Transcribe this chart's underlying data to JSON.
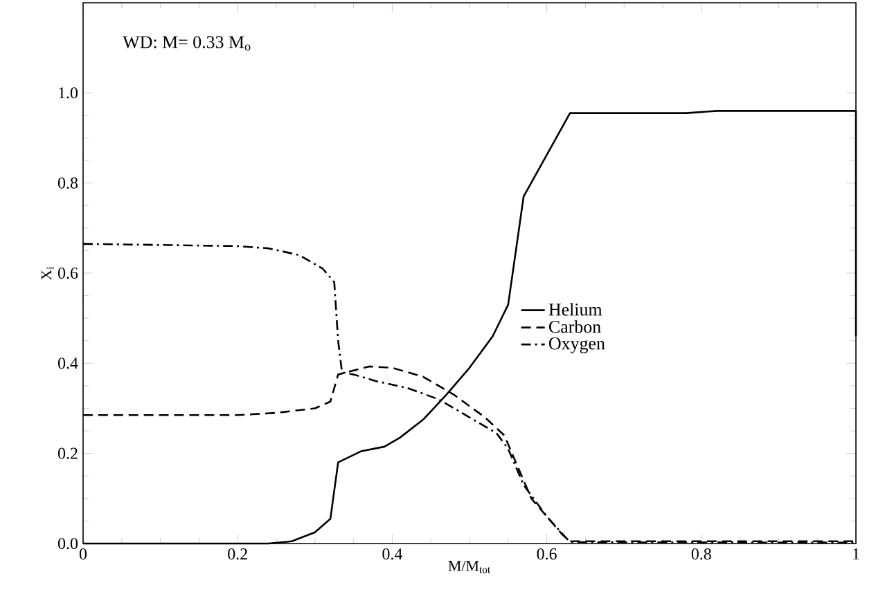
{
  "chart_data": {
    "type": "line",
    "xlabel": "M/M$_{tot}$",
    "ylabel": "X$_{i}$",
    "annotations": [
      "WD: M= 0.33 M$_{o}$"
    ],
    "xlim": [
      0,
      1
    ],
    "ylim": [
      0,
      1.2
    ],
    "xticks": [
      0,
      0.2,
      0.4,
      0.6,
      0.8,
      1
    ],
    "yticks": [
      {
        "value": 0,
        "label": "0.0"
      },
      0.2,
      0.4,
      0.6,
      0.8,
      {
        "value": 1,
        "label": "1.0"
      }
    ],
    "grid": false,
    "legend": "right",
    "marker": "none",
    "series": [
      {
        "name": "Helium",
        "color": "#000000",
        "line_style": "solid",
        "x": [
          0,
          0.24,
          0.27,
          0.3,
          0.32,
          0.33,
          0.36,
          0.39,
          0.41,
          0.44,
          0.47,
          0.5,
          0.53,
          0.55,
          0.57,
          0.63,
          0.78,
          0.82,
          0.99,
          1.0,
          1.0
        ],
        "values": [
          0,
          0,
          0.005,
          0.025,
          0.055,
          0.18,
          0.205,
          0.215,
          0.235,
          0.275,
          0.33,
          0.39,
          0.46,
          0.53,
          0.77,
          0.955,
          0.955,
          0.96,
          0.96,
          0.96,
          0.46
        ]
      },
      {
        "name": "Carbon",
        "color": "#000000",
        "line_style": "dashed",
        "x": [
          0,
          0.2,
          0.25,
          0.3,
          0.32,
          0.33,
          0.37,
          0.4,
          0.44,
          0.48,
          0.52,
          0.545,
          0.56,
          0.58,
          0.62,
          0.63,
          1.0
        ],
        "values": [
          0.285,
          0.285,
          0.29,
          0.3,
          0.315,
          0.375,
          0.393,
          0.39,
          0.37,
          0.33,
          0.28,
          0.24,
          0.18,
          0.1,
          0.02,
          0.005,
          0.005
        ]
      },
      {
        "name": "Oxygen",
        "color": "#000000",
        "line_style": "dashdot",
        "x": [
          0,
          0.2,
          0.24,
          0.28,
          0.31,
          0.325,
          0.33,
          0.335,
          0.35,
          0.38,
          0.42,
          0.46,
          0.5,
          0.535,
          0.55,
          0.57,
          0.6,
          0.63,
          1.0
        ],
        "values": [
          0.665,
          0.66,
          0.655,
          0.64,
          0.61,
          0.58,
          0.45,
          0.38,
          0.375,
          0.36,
          0.345,
          0.32,
          0.28,
          0.245,
          0.21,
          0.13,
          0.06,
          0.003,
          0.002
        ]
      }
    ]
  }
}
